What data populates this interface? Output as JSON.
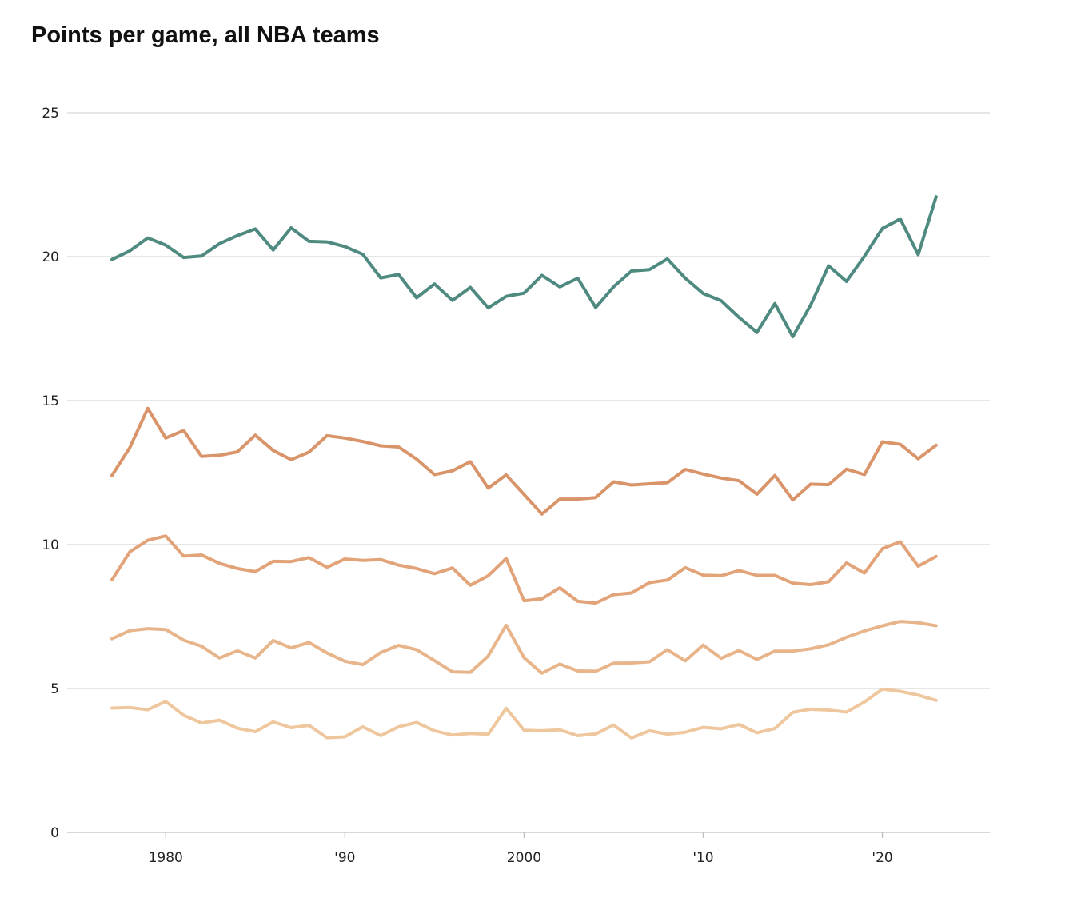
{
  "chart_data": {
    "type": "line",
    "title": "Points per game, all NBA teams",
    "xlabel": "",
    "ylabel": "",
    "xlim": [
      1974.5,
      2026
    ],
    "ylim": [
      0,
      25
    ],
    "grid": true,
    "y_ticks": [
      {
        "value": 0,
        "label": "0"
      },
      {
        "value": 5,
        "label": "5"
      },
      {
        "value": 10,
        "label": "10"
      },
      {
        "value": 15,
        "label": "15"
      },
      {
        "value": 20,
        "label": "20"
      },
      {
        "value": 25,
        "label": "25"
      }
    ],
    "x_ticks": [
      {
        "value": 1980,
        "label": "1980"
      },
      {
        "value": 1990,
        "label": "'90"
      },
      {
        "value": 2000,
        "label": "2000"
      },
      {
        "value": 2010,
        "label": "'10"
      },
      {
        "value": 2020,
        "label": "'20"
      }
    ],
    "x": [
      1977,
      1978,
      1979,
      1980,
      1981,
      1982,
      1983,
      1984,
      1985,
      1986,
      1987,
      1988,
      1989,
      1990,
      1991,
      1992,
      1993,
      1994,
      1995,
      1996,
      1997,
      1998,
      1999,
      2000,
      2001,
      2002,
      2003,
      2004,
      2005,
      2006,
      2007,
      2008,
      2009,
      2010,
      2011,
      2012,
      2013,
      2014,
      2015,
      2016,
      2017,
      2018,
      2019,
      2020,
      2021,
      2022,
      2023
    ],
    "series": [
      {
        "color": "#4e8a80",
        "values": [
          19.9,
          20.2,
          20.65,
          20.4,
          19.97,
          20.02,
          20.45,
          20.73,
          20.96,
          20.23,
          21.0,
          20.53,
          20.51,
          20.35,
          20.08,
          19.26,
          19.38,
          18.57,
          19.05,
          18.48,
          18.93,
          18.22,
          18.62,
          18.73,
          19.35,
          18.95,
          19.25,
          18.23,
          18.95,
          19.5,
          19.55,
          19.92,
          19.25,
          18.72,
          18.47,
          17.89,
          17.37,
          18.37,
          17.22,
          18.32,
          19.68,
          19.14,
          20.01,
          20.98,
          21.31,
          20.07,
          22.08
        ]
      },
      {
        "color": "#d9946a",
        "values": [
          12.4,
          13.37,
          14.73,
          13.7,
          13.96,
          13.06,
          13.1,
          13.22,
          13.8,
          13.27,
          12.95,
          13.21,
          13.78,
          13.7,
          13.58,
          13.43,
          13.39,
          12.97,
          12.43,
          12.56,
          12.88,
          11.96,
          12.42,
          11.74,
          11.06,
          11.58,
          11.58,
          11.63,
          12.18,
          12.07,
          12.11,
          12.15,
          12.61,
          12.45,
          12.31,
          12.22,
          11.75,
          12.4,
          11.55,
          12.1,
          12.08,
          12.62,
          12.43,
          13.57,
          13.48,
          12.98,
          13.45
        ]
      },
      {
        "color": "#e2a378",
        "values": [
          8.78,
          9.75,
          10.15,
          10.3,
          9.6,
          9.64,
          9.35,
          9.17,
          9.06,
          9.42,
          9.41,
          9.55,
          9.21,
          9.5,
          9.45,
          9.48,
          9.29,
          9.17,
          8.99,
          9.19,
          8.59,
          8.92,
          9.52,
          8.05,
          8.12,
          8.5,
          8.03,
          7.97,
          8.26,
          8.32,
          8.68,
          8.77,
          9.2,
          8.94,
          8.92,
          9.1,
          8.93,
          8.93,
          8.66,
          8.61,
          8.71,
          9.36,
          9.01,
          9.86,
          10.1,
          9.25,
          9.59
        ]
      },
      {
        "color": "#e8b58b",
        "values": [
          6.73,
          7.01,
          7.08,
          7.05,
          6.68,
          6.47,
          6.06,
          6.31,
          6.06,
          6.67,
          6.41,
          6.6,
          6.24,
          5.95,
          5.83,
          6.25,
          6.5,
          6.35,
          5.97,
          5.58,
          5.56,
          6.13,
          7.2,
          6.07,
          5.53,
          5.85,
          5.61,
          5.6,
          5.88,
          5.89,
          5.93,
          6.35,
          5.96,
          6.51,
          6.05,
          6.32,
          6.01,
          6.3,
          6.3,
          6.38,
          6.52,
          6.78,
          7.0,
          7.18,
          7.33,
          7.29,
          7.18
        ]
      },
      {
        "color": "#efc79e",
        "values": [
          4.32,
          4.34,
          4.26,
          4.55,
          4.07,
          3.8,
          3.9,
          3.62,
          3.5,
          3.84,
          3.64,
          3.72,
          3.29,
          3.32,
          3.67,
          3.36,
          3.67,
          3.82,
          3.53,
          3.38,
          3.44,
          3.41,
          4.31,
          3.55,
          3.53,
          3.56,
          3.36,
          3.42,
          3.73,
          3.28,
          3.53,
          3.41,
          3.48,
          3.65,
          3.6,
          3.75,
          3.46,
          3.61,
          4.17,
          4.28,
          4.25,
          4.18,
          4.53,
          4.98,
          4.9,
          4.77,
          4.59
        ]
      }
    ]
  }
}
